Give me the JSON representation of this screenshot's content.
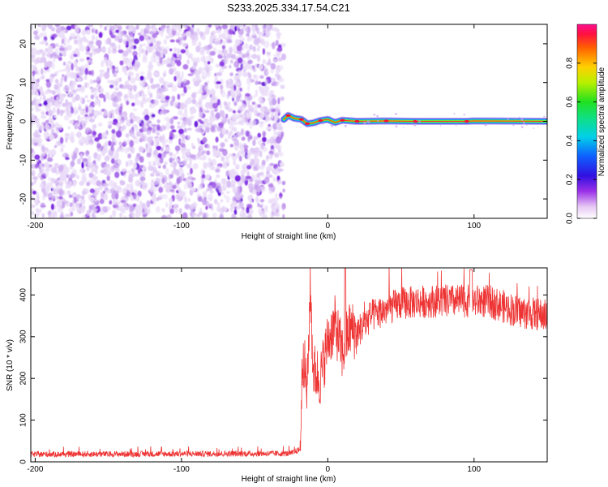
{
  "title": "S233.2025.334.17.54.C21",
  "chart_data": [
    {
      "type": "heatmap",
      "panel": "top",
      "xlabel": "Height of straight line (km)",
      "ylabel": "Frequency (Hz)",
      "xlim": [
        -203,
        150
      ],
      "ylim": [
        -25,
        25
      ],
      "xticks": [
        -200,
        -100,
        0,
        100
      ],
      "yticks": [
        -20,
        -10,
        0,
        10,
        20
      ],
      "noise_region_x": [
        -203,
        -30
      ],
      "signal_line": [
        {
          "x": -30,
          "y": 0.5
        },
        {
          "x": -27,
          "y": 1.5
        },
        {
          "x": -23,
          "y": 0.8
        },
        {
          "x": -18,
          "y": 0.5
        },
        {
          "x": -14,
          "y": -0.6
        },
        {
          "x": -10,
          "y": -0.4
        },
        {
          "x": -5,
          "y": 0.2
        },
        {
          "x": 0,
          "y": 0.5
        },
        {
          "x": 5,
          "y": -0.3
        },
        {
          "x": 10,
          "y": 0.3
        },
        {
          "x": 20,
          "y": 0.0
        },
        {
          "x": 40,
          "y": 0.1
        },
        {
          "x": 60,
          "y": 0.0
        },
        {
          "x": 80,
          "y": 0.0
        },
        {
          "x": 95,
          "y": 0.0
        },
        {
          "x": 100,
          "y": 0.1
        },
        {
          "x": 150,
          "y": 0.0
        }
      ],
      "colorbar": {
        "label": "Normalized spectral amplitude",
        "range": [
          0,
          1
        ],
        "ticks": [
          "0.0",
          "0.2",
          "0.4",
          "0.6",
          "0.8"
        ]
      }
    },
    {
      "type": "line",
      "panel": "bottom",
      "xlabel": "Height of straight line (km)",
      "ylabel": "SNR (10 * v/v)",
      "xlim": [
        -203,
        150
      ],
      "ylim": [
        0,
        465
      ],
      "xticks": [
        -200,
        -100,
        0,
        100
      ],
      "yticks": [
        0,
        100,
        200,
        300,
        400
      ],
      "color": "#ee3333",
      "series_shape": [
        {
          "x": -203,
          "y": 18
        },
        {
          "x": -25,
          "y": 20
        },
        {
          "x": -19,
          "y": 30
        },
        {
          "x": -17,
          "y": 270
        },
        {
          "x": -14,
          "y": 160
        },
        {
          "x": -12,
          "y": 430
        },
        {
          "x": -10,
          "y": 220
        },
        {
          "x": -5,
          "y": 200
        },
        {
          "x": 0,
          "y": 290
        },
        {
          "x": 5,
          "y": 330
        },
        {
          "x": 10,
          "y": 260
        },
        {
          "x": 15,
          "y": 320
        },
        {
          "x": 20,
          "y": 310
        },
        {
          "x": 30,
          "y": 350
        },
        {
          "x": 50,
          "y": 380
        },
        {
          "x": 70,
          "y": 385
        },
        {
          "x": 90,
          "y": 385
        },
        {
          "x": 110,
          "y": 385
        },
        {
          "x": 130,
          "y": 360
        },
        {
          "x": 150,
          "y": 350
        }
      ]
    }
  ]
}
